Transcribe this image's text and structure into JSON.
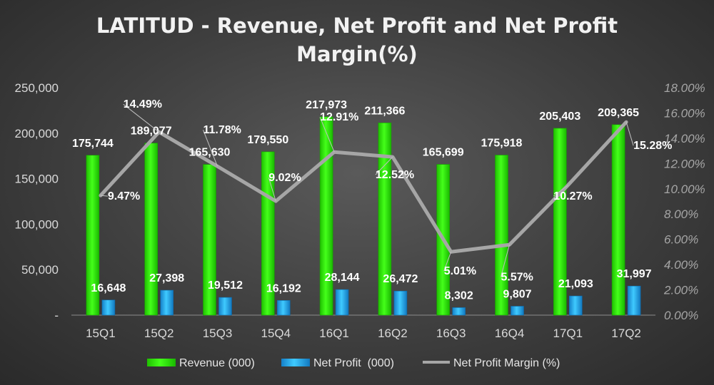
{
  "chart_data": {
    "type": "bar",
    "title_line1": "LATITUD - Revenue, Net Profit and Net Profit",
    "title_line2": "Margin(%)",
    "categories": [
      "15Q1",
      "15Q2",
      "15Q3",
      "15Q4",
      "16Q1",
      "16Q2",
      "16Q3",
      "16Q4",
      "17Q1",
      "17Q2"
    ],
    "series": [
      {
        "name": "Revenue (000)",
        "axis": "left",
        "kind": "bar",
        "color": "#2ee80a",
        "values": [
          175744,
          189077,
          165630,
          179550,
          217973,
          211366,
          165699,
          175918,
          205403,
          209365
        ],
        "labels": [
          "175,744",
          "189,077",
          "165,630",
          "179,550",
          "217,973",
          "211,366",
          "165,699",
          "175,918",
          "205,403",
          "209,365"
        ]
      },
      {
        "name": "Net Profit  (000)",
        "axis": "left",
        "kind": "bar",
        "color": "#1fa8e8",
        "values": [
          16648,
          27398,
          19512,
          16192,
          28144,
          26472,
          8302,
          9807,
          21093,
          31997
        ],
        "labels": [
          "16,648",
          "27,398",
          "19,512",
          "16,192",
          "28,144",
          "26,472",
          "8,302",
          "9,807",
          "21,093",
          "31,997"
        ]
      },
      {
        "name": "Net Profit Margin (%)",
        "axis": "right",
        "kind": "line",
        "color": "#a6a6a6",
        "values": [
          9.47,
          14.49,
          11.78,
          9.02,
          12.91,
          12.52,
          5.01,
          5.57,
          10.27,
          15.28
        ],
        "labels": [
          "9.47%",
          "14.49%",
          "11.78%",
          "9.02%",
          "12.91%",
          "12.52%",
          "5.01%",
          "5.57%",
          "10.27%",
          "15.28%"
        ]
      }
    ],
    "y_left": {
      "min": 0,
      "max": 250000,
      "ticks": [
        0,
        50000,
        100000,
        150000,
        200000,
        250000
      ],
      "tick_labels": [
        "-",
        "50,000",
        "100,000",
        "150,000",
        "200,000",
        "250,000"
      ]
    },
    "y_right": {
      "min": 0,
      "max": 18,
      "ticks": [
        0,
        2,
        4,
        6,
        8,
        10,
        12,
        14,
        16,
        18
      ],
      "tick_labels": [
        "0.00%",
        "2.00%",
        "4.00%",
        "6.00%",
        "8.00%",
        "10.00%",
        "12.00%",
        "14.00%",
        "16.00%",
        "18.00%"
      ]
    },
    "legend_position": "bottom"
  }
}
